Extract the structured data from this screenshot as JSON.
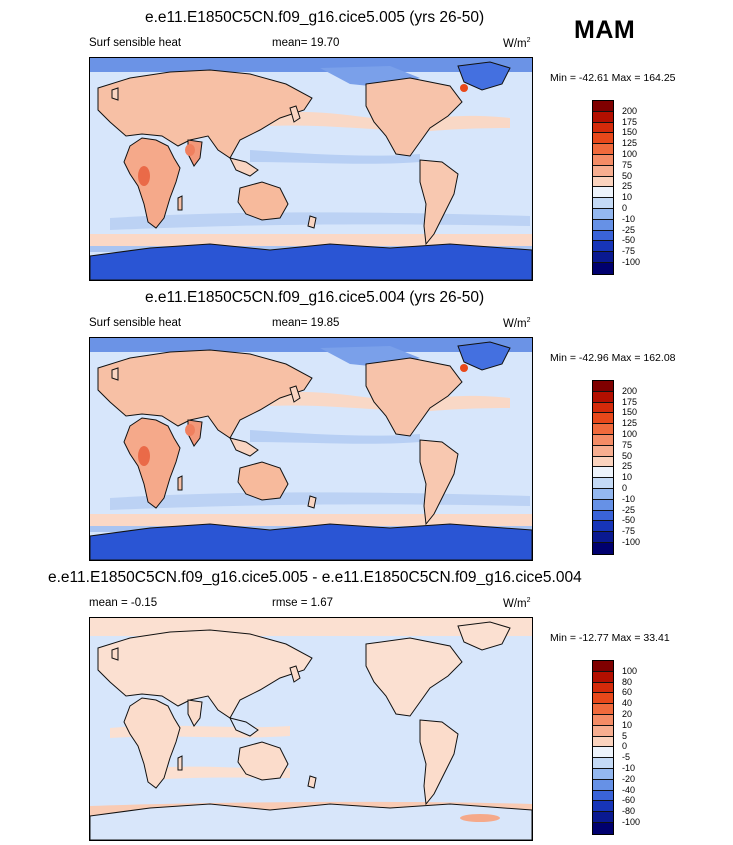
{
  "season": "MAM",
  "panels": [
    {
      "title": "e.e11.E1850C5CN.f09_g16.cice5.005 (yrs 26-50)",
      "left_label": "Surf sensible heat",
      "center_label": "mean=  19.70",
      "units": "W/m",
      "units_exp": "2",
      "minmax": "Min = -42.61 Max = 164.25",
      "colorbar_labels": [
        "200",
        "175",
        "150",
        "125",
        "100",
        "75",
        "50",
        "25",
        "10",
        "0",
        "-10",
        "-25",
        "-50",
        "-75",
        "-100"
      ]
    },
    {
      "title": "e.e11.E1850C5CN.f09_g16.cice5.004 (yrs 26-50)",
      "left_label": "Surf sensible heat",
      "center_label": "mean=  19.85",
      "units": "W/m",
      "units_exp": "2",
      "minmax": "Min = -42.96 Max = 162.08",
      "colorbar_labels": [
        "200",
        "175",
        "150",
        "125",
        "100",
        "75",
        "50",
        "25",
        "10",
        "0",
        "-10",
        "-25",
        "-50",
        "-75",
        "-100"
      ]
    },
    {
      "title": "e.e11.E1850C5CN.f09_g16.cice5.005 - e.e11.E1850C5CN.f09_g16.cice5.004",
      "left_label": "mean =  -0.15",
      "center_label": "rmse =   1.67",
      "units": "W/m",
      "units_exp": "2",
      "minmax": "Min = -12.77 Max =  33.41",
      "colorbar_labels": [
        "100",
        "80",
        "60",
        "40",
        "20",
        "10",
        "5",
        "0",
        "-5",
        "-10",
        "-20",
        "-40",
        "-60",
        "-80",
        "-100"
      ]
    }
  ],
  "colorbar_colors": [
    "#7f0000",
    "#b30f00",
    "#d42a0a",
    "#e8481a",
    "#f06a3c",
    "#f48c66",
    "#f7ae90",
    "#fbd3be",
    "#edf3fb",
    "#c4daf6",
    "#94b8f0",
    "#6691e6",
    "#3a63d8",
    "#1735b8",
    "#0a1990",
    "#00006e"
  ]
}
